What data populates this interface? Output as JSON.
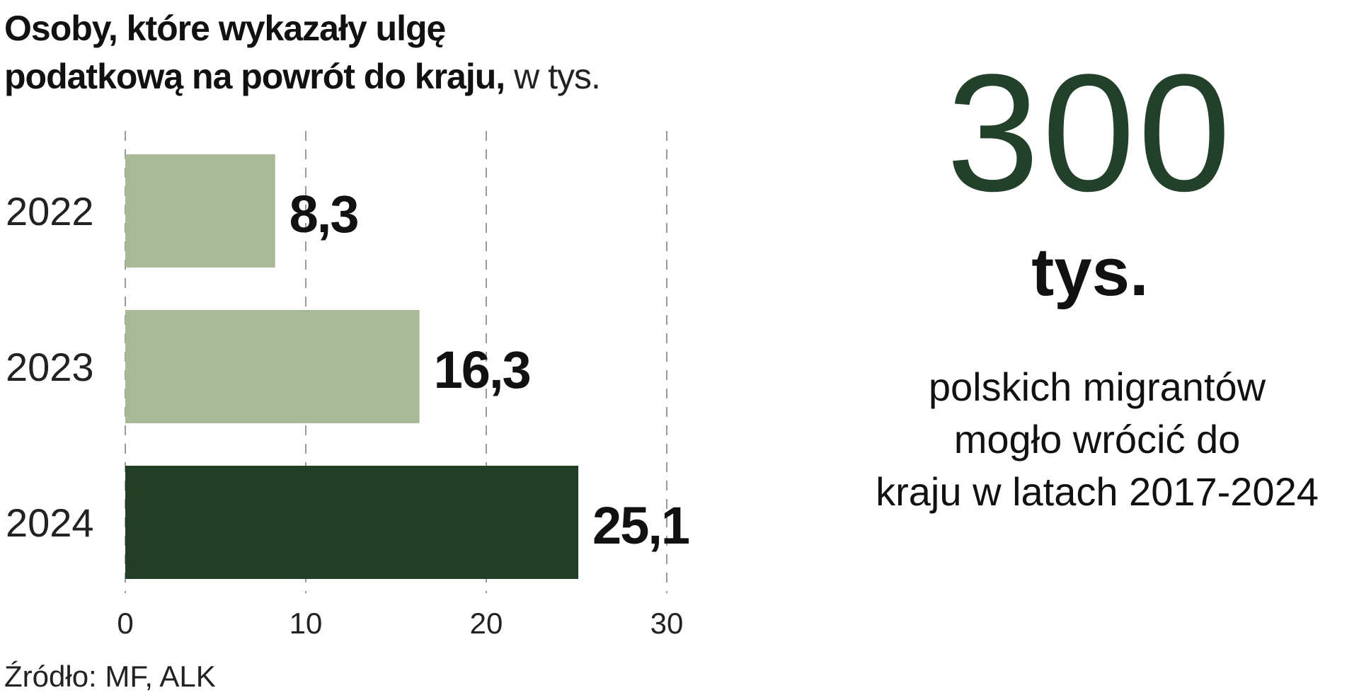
{
  "title": {
    "line1": "Osoby, które wykazały ulgę",
    "line2": "podatkową na powrót do kraju,",
    "unit": " w tys."
  },
  "source": "Źródło: MF, ALK",
  "highlight": {
    "number": "300",
    "unit": "tys.",
    "caption": [
      "polskich migrantów",
      "mogło wrócić do",
      "kraju w latach 2017-2024"
    ]
  },
  "colors": {
    "bar_light": "#a9b896",
    "bar_dark": "#223e26",
    "accent_dark": "#23402a",
    "grid": "#9a9a9a"
  },
  "chart_data": {
    "type": "bar",
    "orientation": "horizontal",
    "categories": [
      "2022",
      "2023",
      "2024"
    ],
    "values": [
      8.3,
      16.3,
      25.1
    ],
    "value_labels": [
      "8,3",
      "16,3",
      "25,1"
    ],
    "bar_colors": [
      "#a9b896",
      "#a9b896",
      "#223e26"
    ],
    "xlim": [
      0,
      30
    ],
    "xticks": [
      0,
      10,
      20,
      30
    ],
    "xtick_labels": [
      "0",
      "10",
      "20",
      "30"
    ],
    "grid": true,
    "grid_style": "dashed"
  }
}
